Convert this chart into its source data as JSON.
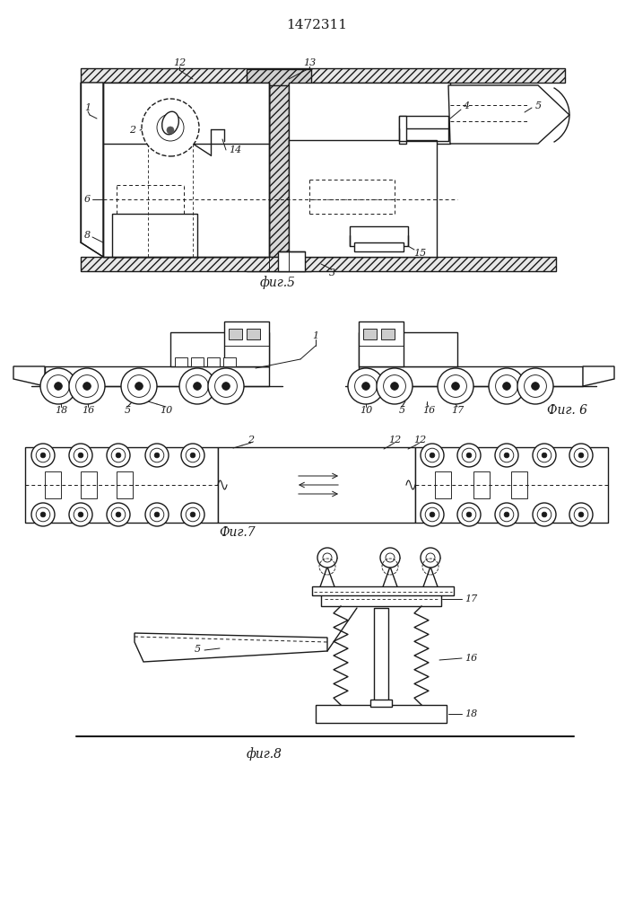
{
  "title": "1472311",
  "bg_color": "#ffffff",
  "line_color": "#1a1a1a",
  "fig5_caption": "фиг.5",
  "fig6_caption": "Фиг. 6",
  "fig7_caption": "Фиг.7",
  "fig8_caption": "фиг.8"
}
